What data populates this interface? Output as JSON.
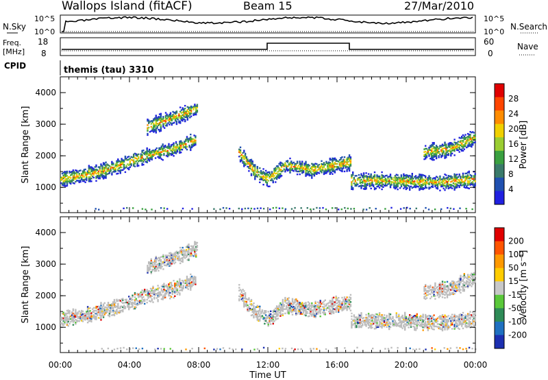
{
  "header": {
    "title": "Wallops Island (fitACF)",
    "beam": "Beam 15",
    "date": "27/Mar/2010"
  },
  "top_panel": {
    "left_label": "N.Sky",
    "left_ticks": [
      "10^5",
      "10^0"
    ],
    "right_ticks": [
      "10^5",
      "10^0"
    ],
    "right_label": "N.Search"
  },
  "freq_panel": {
    "left_label_1": "Freq.",
    "left_label_2": "[MHz]",
    "left_ticks": [
      "18",
      "8"
    ],
    "right_ticks": [
      "60",
      "0"
    ],
    "right_label": "Nave"
  },
  "cpid": {
    "label": "CPID",
    "value": "themis (tau) 3310"
  },
  "colors": {
    "grey_scatter": "#bdbdbd",
    "frame": "#000000"
  },
  "chart_data": [
    {
      "type": "heatmap",
      "title": "",
      "xlabel": "Time UT",
      "ylabel": "Slant Range [km]",
      "xlim": [
        0,
        24
      ],
      "ylim": [
        200,
        4500
      ],
      "y_ticks": [
        1000,
        2000,
        3000,
        4000
      ],
      "x_ticks": [
        "00:00",
        "04:00",
        "08:00",
        "12:00",
        "16:00",
        "20:00",
        "00:00"
      ],
      "colorbar": {
        "label": "Power [dB]",
        "ticks": [
          "4",
          "8",
          "12",
          "16",
          "20",
          "24",
          "28"
        ],
        "colors": [
          "#2020e0",
          "#2050b0",
          "#3a7a6a",
          "#3aa040",
          "#9acd32",
          "#f0d000",
          "#ff8c00",
          "#ff4500",
          "#e00000"
        ]
      },
      "echo_bands": [
        {
          "t": [
            0.0,
            2.0,
            3.5,
            5.0,
            6.5,
            7.8
          ],
          "r": [
            1250,
            1450,
            1700,
            2000,
            2200,
            2500
          ]
        },
        {
          "t": [
            5.0,
            6.0,
            7.0,
            7.9
          ],
          "r": [
            2900,
            3100,
            3300,
            3500
          ]
        },
        {
          "t": [
            10.3,
            11.2,
            12.0,
            13.0,
            14.5,
            16.8
          ],
          "r": [
            2100,
            1500,
            1250,
            1700,
            1550,
            1800
          ]
        },
        {
          "t": [
            16.8,
            19.0,
            22.0,
            24.0
          ],
          "r": [
            1200,
            1200,
            1150,
            1250
          ]
        },
        {
          "t": [
            21.0,
            22.5,
            24.0
          ],
          "r": [
            2100,
            2200,
            2600
          ]
        }
      ],
      "ground_scatter": {
        "r": 300,
        "t": [
          2.0,
          24.0
        ]
      }
    },
    {
      "type": "heatmap",
      "title": "",
      "xlabel": "Time UT",
      "ylabel": "Slant Range [km]",
      "xlim": [
        0,
        24
      ],
      "ylim": [
        200,
        4500
      ],
      "y_ticks": [
        1000,
        2000,
        3000,
        4000
      ],
      "x_ticks": [
        "00:00",
        "04:00",
        "08:00",
        "12:00",
        "16:00",
        "20:00",
        "00:00"
      ],
      "colorbar": {
        "label": "Velocity [m s⁻¹]",
        "ticks": [
          "200",
          "100",
          "50",
          "15",
          "-15",
          "-50",
          "-100",
          "-200"
        ],
        "colors": [
          "#1c2fb0",
          "#1f70c0",
          "#2e8b57",
          "#5ac83a",
          "#c8c8c8",
          "#ffcc00",
          "#ff9900",
          "#ff5500",
          "#e00000"
        ]
      }
    }
  ]
}
